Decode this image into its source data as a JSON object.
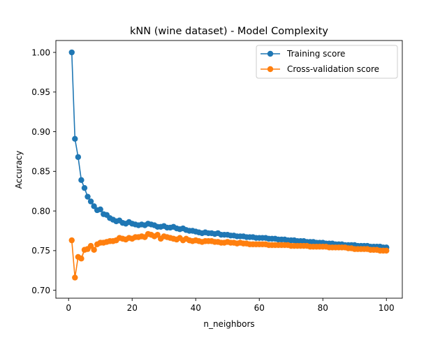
{
  "chart_data": {
    "type": "line",
    "title": "kNN (wine dataset) - Model Complexity",
    "xlabel": "n_neighbors",
    "ylabel": "Accuracy",
    "xlim": [
      -4,
      105
    ],
    "ylim": [
      0.69,
      1.015
    ],
    "xticks": [
      0,
      20,
      40,
      60,
      80,
      100
    ],
    "yticks": [
      0.7,
      0.75,
      0.8,
      0.85,
      0.9,
      0.95,
      1.0
    ],
    "xtick_labels": [
      "0",
      "20",
      "40",
      "60",
      "80",
      "100"
    ],
    "ytick_labels": [
      "0.70",
      "0.75",
      "0.80",
      "0.85",
      "0.90",
      "0.95",
      "1.00"
    ],
    "grid": false,
    "legend_position": "upper right",
    "x": [
      1,
      2,
      3,
      4,
      5,
      6,
      7,
      8,
      9,
      10,
      11,
      12,
      13,
      14,
      15,
      16,
      17,
      18,
      19,
      20,
      21,
      22,
      23,
      24,
      25,
      26,
      27,
      28,
      29,
      30,
      31,
      32,
      33,
      34,
      35,
      36,
      37,
      38,
      39,
      40,
      41,
      42,
      43,
      44,
      45,
      46,
      47,
      48,
      49,
      50,
      51,
      52,
      53,
      54,
      55,
      56,
      57,
      58,
      59,
      60,
      61,
      62,
      63,
      64,
      65,
      66,
      67,
      68,
      69,
      70,
      71,
      72,
      73,
      74,
      75,
      76,
      77,
      78,
      79,
      80,
      81,
      82,
      83,
      84,
      85,
      86,
      87,
      88,
      89,
      90,
      91,
      92,
      93,
      94,
      95,
      96,
      97,
      98,
      99,
      100
    ],
    "series": [
      {
        "name": "Training score",
        "color": "#1f77b4",
        "band_halfwidth": 0.002,
        "values": [
          1.0,
          0.891,
          0.868,
          0.839,
          0.829,
          0.818,
          0.812,
          0.806,
          0.801,
          0.802,
          0.796,
          0.795,
          0.791,
          0.789,
          0.787,
          0.788,
          0.785,
          0.784,
          0.786,
          0.784,
          0.783,
          0.782,
          0.783,
          0.782,
          0.784,
          0.783,
          0.782,
          0.78,
          0.78,
          0.781,
          0.779,
          0.779,
          0.78,
          0.778,
          0.777,
          0.778,
          0.776,
          0.775,
          0.775,
          0.774,
          0.773,
          0.772,
          0.773,
          0.772,
          0.772,
          0.771,
          0.772,
          0.77,
          0.77,
          0.77,
          0.769,
          0.769,
          0.768,
          0.768,
          0.768,
          0.767,
          0.767,
          0.767,
          0.766,
          0.766,
          0.766,
          0.766,
          0.765,
          0.765,
          0.765,
          0.764,
          0.764,
          0.764,
          0.763,
          0.763,
          0.763,
          0.762,
          0.762,
          0.762,
          0.761,
          0.761,
          0.761,
          0.76,
          0.76,
          0.76,
          0.759,
          0.759,
          0.759,
          0.758,
          0.758,
          0.758,
          0.757,
          0.757,
          0.757,
          0.757,
          0.756,
          0.756,
          0.756,
          0.756,
          0.755,
          0.755,
          0.755,
          0.755,
          0.754,
          0.754
        ]
      },
      {
        "name": "Cross-validation score",
        "color": "#ff7f0e",
        "band_halfwidth": 0.004,
        "values": [
          0.763,
          0.716,
          0.742,
          0.74,
          0.751,
          0.752,
          0.756,
          0.751,
          0.758,
          0.76,
          0.76,
          0.761,
          0.762,
          0.762,
          0.763,
          0.766,
          0.765,
          0.764,
          0.766,
          0.765,
          0.767,
          0.767,
          0.768,
          0.767,
          0.771,
          0.77,
          0.768,
          0.77,
          0.765,
          0.768,
          0.767,
          0.766,
          0.765,
          0.764,
          0.766,
          0.763,
          0.765,
          0.763,
          0.762,
          0.763,
          0.762,
          0.761,
          0.762,
          0.762,
          0.762,
          0.761,
          0.761,
          0.76,
          0.76,
          0.761,
          0.76,
          0.76,
          0.759,
          0.76,
          0.759,
          0.759,
          0.758,
          0.758,
          0.758,
          0.758,
          0.758,
          0.758,
          0.757,
          0.757,
          0.757,
          0.757,
          0.757,
          0.757,
          0.757,
          0.756,
          0.756,
          0.756,
          0.756,
          0.756,
          0.756,
          0.755,
          0.755,
          0.755,
          0.755,
          0.755,
          0.755,
          0.754,
          0.754,
          0.754,
          0.754,
          0.754,
          0.754,
          0.753,
          0.753,
          0.752,
          0.752,
          0.752,
          0.752,
          0.752,
          0.751,
          0.751,
          0.751,
          0.75,
          0.75,
          0.75
        ]
      }
    ]
  }
}
